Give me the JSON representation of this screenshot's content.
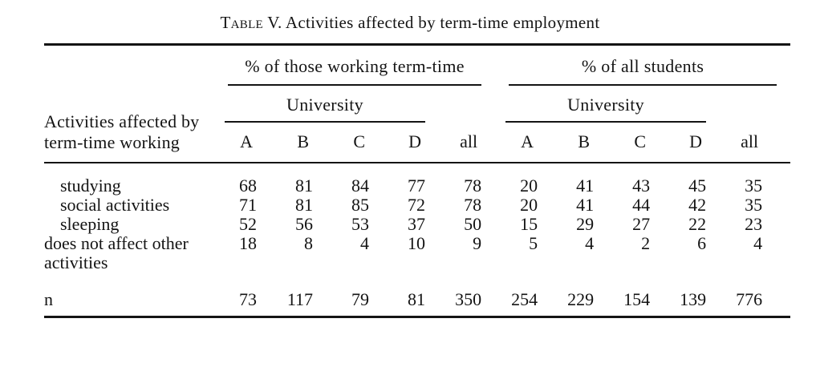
{
  "page": {
    "background": "#ffffff",
    "text_color": "#141414"
  },
  "title": {
    "smallcaps_word": "Table",
    "rest": "V. Activities affected by term-time employment"
  },
  "header": {
    "stub": {
      "line1": "Activities affected by",
      "line2": "term-time working"
    },
    "groups": [
      {
        "title": "% of those working term-time",
        "subheader": "University",
        "columns": [
          "A",
          "B",
          "C",
          "D",
          "all"
        ]
      },
      {
        "title": "% of all students",
        "subheader": "University",
        "columns": [
          "A",
          "B",
          "C",
          "D",
          "all"
        ]
      }
    ]
  },
  "body": {
    "rows": [
      {
        "label_lines": [
          "studying"
        ],
        "indent": true,
        "footer": false,
        "values": [
          68,
          81,
          84,
          77,
          78,
          20,
          41,
          43,
          45,
          35
        ]
      },
      {
        "label_lines": [
          "social activities"
        ],
        "indent": true,
        "footer": false,
        "values": [
          71,
          81,
          85,
          72,
          78,
          20,
          41,
          44,
          42,
          35
        ]
      },
      {
        "label_lines": [
          "sleeping"
        ],
        "indent": true,
        "footer": false,
        "values": [
          52,
          56,
          53,
          37,
          50,
          15,
          29,
          27,
          22,
          23
        ]
      },
      {
        "label_lines": [
          "does not affect other",
          "activities"
        ],
        "indent": false,
        "footer": false,
        "values": [
          18,
          8,
          4,
          10,
          9,
          5,
          4,
          2,
          6,
          4
        ]
      },
      {
        "label_lines": [
          "n"
        ],
        "indent": false,
        "footer": true,
        "values": [
          73,
          117,
          79,
          81,
          350,
          254,
          229,
          154,
          139,
          776
        ]
      }
    ]
  }
}
